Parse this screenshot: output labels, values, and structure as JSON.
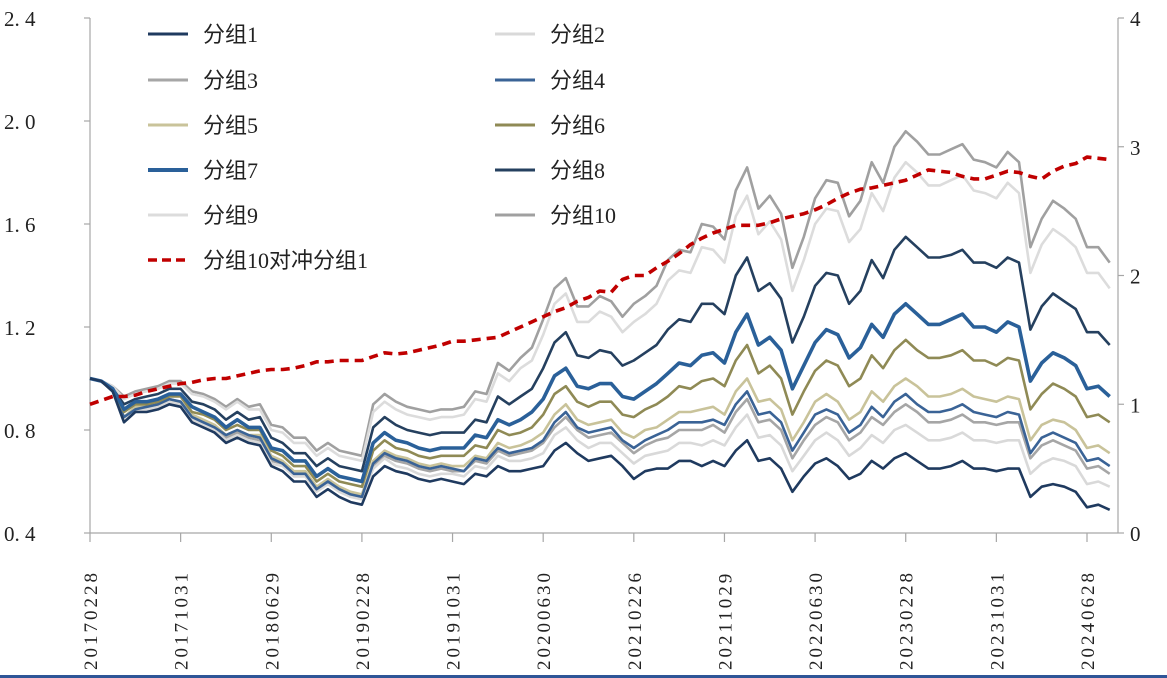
{
  "chart_data": {
    "type": "line",
    "title": "",
    "xlabel": "",
    "ylabel": "",
    "y2label": "",
    "ylim": [
      0.4,
      2.4
    ],
    "y2lim": [
      0,
      4
    ],
    "yticks": [
      "0. 4",
      "0. 8",
      "1. 2",
      "1. 6",
      "2. 0",
      "2. 4"
    ],
    "ytick_values": [
      0.4,
      0.8,
      1.2,
      1.6,
      2.0,
      2.4
    ],
    "y2ticks": [
      "0",
      "1",
      "2",
      "3",
      "4"
    ],
    "y2tick_values": [
      0,
      1,
      2,
      3,
      4
    ],
    "x_frequency": "monthly",
    "xticks": [
      {
        "label": "20170228",
        "index": 0
      },
      {
        "label": "20171031",
        "index": 8
      },
      {
        "label": "20180629",
        "index": 16
      },
      {
        "label": "20190228",
        "index": 24
      },
      {
        "label": "20191031",
        "index": 32
      },
      {
        "label": "20200630",
        "index": 40
      },
      {
        "label": "20210226",
        "index": 48
      },
      {
        "label": "20211029",
        "index": 56
      },
      {
        "label": "20220630",
        "index": 64
      },
      {
        "label": "20230228",
        "index": 72
      },
      {
        "label": "20231031",
        "index": 80
      },
      {
        "label": "20240628",
        "index": 88
      }
    ],
    "grid": false,
    "legend_position": "top-left",
    "series": [
      {
        "name": "分组1",
        "axis": "left",
        "color": "#1f3a5f",
        "values": [
          1.0,
          0.99,
          0.95,
          0.83,
          0.87,
          0.87,
          0.88,
          0.9,
          0.89,
          0.83,
          0.81,
          0.79,
          0.75,
          0.77,
          0.75,
          0.74,
          0.66,
          0.64,
          0.6,
          0.6,
          0.54,
          0.57,
          0.54,
          0.52,
          0.51,
          0.62,
          0.66,
          0.64,
          0.63,
          0.61,
          0.6,
          0.61,
          0.6,
          0.59,
          0.63,
          0.62,
          0.66,
          0.64,
          0.64,
          0.65,
          0.66,
          0.72,
          0.75,
          0.71,
          0.68,
          0.69,
          0.7,
          0.66,
          0.61,
          0.64,
          0.65,
          0.65,
          0.68,
          0.68,
          0.66,
          0.68,
          0.66,
          0.72,
          0.76,
          0.68,
          0.69,
          0.65,
          0.56,
          0.62,
          0.67,
          0.69,
          0.66,
          0.61,
          0.63,
          0.68,
          0.65,
          0.69,
          0.71,
          0.68,
          0.65,
          0.65,
          0.66,
          0.68,
          0.65,
          0.65,
          0.64,
          0.65,
          0.65,
          0.54,
          0.58,
          0.59,
          0.58,
          0.56,
          0.5,
          0.51,
          0.49
        ]
      },
      {
        "name": "分组2",
        "axis": "left",
        "color": "#d9d9d9",
        "values": [
          1.0,
          0.99,
          0.95,
          0.84,
          0.88,
          0.88,
          0.89,
          0.91,
          0.9,
          0.84,
          0.82,
          0.8,
          0.76,
          0.78,
          0.76,
          0.75,
          0.67,
          0.66,
          0.62,
          0.62,
          0.56,
          0.59,
          0.56,
          0.54,
          0.53,
          0.65,
          0.69,
          0.66,
          0.65,
          0.63,
          0.62,
          0.63,
          0.63,
          0.62,
          0.66,
          0.65,
          0.7,
          0.68,
          0.68,
          0.69,
          0.71,
          0.78,
          0.81,
          0.76,
          0.73,
          0.75,
          0.75,
          0.71,
          0.67,
          0.7,
          0.71,
          0.72,
          0.75,
          0.75,
          0.74,
          0.76,
          0.74,
          0.81,
          0.86,
          0.77,
          0.78,
          0.74,
          0.64,
          0.7,
          0.76,
          0.79,
          0.76,
          0.7,
          0.73,
          0.78,
          0.75,
          0.8,
          0.82,
          0.79,
          0.76,
          0.76,
          0.77,
          0.79,
          0.76,
          0.76,
          0.75,
          0.76,
          0.76,
          0.63,
          0.67,
          0.69,
          0.68,
          0.66,
          0.59,
          0.6,
          0.58
        ]
      },
      {
        "name": "分组3",
        "axis": "left",
        "color": "#a6a6a6",
        "values": [
          1.0,
          0.99,
          0.95,
          0.85,
          0.88,
          0.88,
          0.89,
          0.91,
          0.91,
          0.85,
          0.83,
          0.81,
          0.77,
          0.79,
          0.77,
          0.76,
          0.68,
          0.67,
          0.63,
          0.63,
          0.57,
          0.6,
          0.57,
          0.55,
          0.54,
          0.66,
          0.7,
          0.68,
          0.67,
          0.65,
          0.64,
          0.65,
          0.64,
          0.64,
          0.68,
          0.67,
          0.72,
          0.7,
          0.71,
          0.72,
          0.75,
          0.81,
          0.85,
          0.8,
          0.77,
          0.78,
          0.79,
          0.75,
          0.71,
          0.74,
          0.76,
          0.77,
          0.8,
          0.8,
          0.8,
          0.82,
          0.79,
          0.87,
          0.92,
          0.83,
          0.84,
          0.8,
          0.69,
          0.76,
          0.82,
          0.85,
          0.83,
          0.76,
          0.79,
          0.85,
          0.82,
          0.87,
          0.9,
          0.87,
          0.83,
          0.83,
          0.84,
          0.86,
          0.83,
          0.83,
          0.82,
          0.83,
          0.83,
          0.69,
          0.74,
          0.76,
          0.74,
          0.72,
          0.65,
          0.66,
          0.63
        ]
      },
      {
        "name": "分组4",
        "axis": "left",
        "color": "#3a6396",
        "values": [
          1.0,
          0.99,
          0.95,
          0.85,
          0.88,
          0.89,
          0.9,
          0.92,
          0.91,
          0.85,
          0.83,
          0.81,
          0.78,
          0.8,
          0.78,
          0.77,
          0.69,
          0.67,
          0.63,
          0.63,
          0.57,
          0.6,
          0.57,
          0.55,
          0.54,
          0.67,
          0.71,
          0.69,
          0.68,
          0.66,
          0.65,
          0.66,
          0.65,
          0.64,
          0.69,
          0.68,
          0.73,
          0.71,
          0.72,
          0.73,
          0.76,
          0.83,
          0.87,
          0.81,
          0.79,
          0.8,
          0.81,
          0.76,
          0.73,
          0.76,
          0.78,
          0.8,
          0.83,
          0.83,
          0.83,
          0.84,
          0.82,
          0.9,
          0.95,
          0.86,
          0.87,
          0.83,
          0.72,
          0.79,
          0.86,
          0.88,
          0.86,
          0.79,
          0.82,
          0.89,
          0.85,
          0.91,
          0.94,
          0.9,
          0.87,
          0.87,
          0.88,
          0.9,
          0.87,
          0.86,
          0.85,
          0.87,
          0.86,
          0.71,
          0.77,
          0.79,
          0.77,
          0.75,
          0.68,
          0.69,
          0.66
        ]
      },
      {
        "name": "分组5",
        "axis": "left",
        "color": "#c9c39a",
        "values": [
          1.0,
          0.99,
          0.95,
          0.85,
          0.89,
          0.89,
          0.9,
          0.92,
          0.91,
          0.86,
          0.84,
          0.82,
          0.78,
          0.8,
          0.78,
          0.78,
          0.7,
          0.68,
          0.64,
          0.64,
          0.58,
          0.61,
          0.58,
          0.56,
          0.55,
          0.68,
          0.72,
          0.7,
          0.69,
          0.67,
          0.66,
          0.67,
          0.66,
          0.66,
          0.7,
          0.69,
          0.75,
          0.73,
          0.74,
          0.76,
          0.79,
          0.86,
          0.9,
          0.84,
          0.82,
          0.83,
          0.84,
          0.79,
          0.77,
          0.8,
          0.81,
          0.84,
          0.87,
          0.87,
          0.88,
          0.89,
          0.86,
          0.95,
          1.0,
          0.91,
          0.92,
          0.88,
          0.76,
          0.83,
          0.91,
          0.94,
          0.91,
          0.84,
          0.87,
          0.95,
          0.91,
          0.97,
          1.0,
          0.97,
          0.93,
          0.93,
          0.94,
          0.96,
          0.93,
          0.92,
          0.91,
          0.93,
          0.92,
          0.76,
          0.82,
          0.84,
          0.83,
          0.8,
          0.73,
          0.74,
          0.71
        ]
      },
      {
        "name": "分组6",
        "axis": "left",
        "color": "#8f8a55",
        "values": [
          1.0,
          0.99,
          0.96,
          0.87,
          0.9,
          0.9,
          0.91,
          0.93,
          0.93,
          0.87,
          0.86,
          0.84,
          0.8,
          0.82,
          0.8,
          0.8,
          0.72,
          0.7,
          0.66,
          0.66,
          0.6,
          0.63,
          0.6,
          0.59,
          0.58,
          0.72,
          0.76,
          0.73,
          0.72,
          0.7,
          0.69,
          0.7,
          0.7,
          0.7,
          0.74,
          0.73,
          0.8,
          0.78,
          0.79,
          0.81,
          0.86,
          0.94,
          0.97,
          0.91,
          0.89,
          0.91,
          0.91,
          0.86,
          0.85,
          0.88,
          0.9,
          0.93,
          0.97,
          0.96,
          0.99,
          1.0,
          0.97,
          1.07,
          1.13,
          1.02,
          1.05,
          1.0,
          0.86,
          0.95,
          1.03,
          1.07,
          1.05,
          0.97,
          1.0,
          1.09,
          1.04,
          1.11,
          1.15,
          1.11,
          1.08,
          1.08,
          1.09,
          1.11,
          1.07,
          1.07,
          1.05,
          1.08,
          1.07,
          0.88,
          0.94,
          0.98,
          0.96,
          0.93,
          0.85,
          0.86,
          0.83
        ]
      },
      {
        "name": "分组7",
        "axis": "left",
        "color": "#2a6099",
        "values": [
          1.0,
          0.99,
          0.96,
          0.88,
          0.91,
          0.91,
          0.92,
          0.94,
          0.94,
          0.89,
          0.87,
          0.85,
          0.81,
          0.84,
          0.81,
          0.81,
          0.73,
          0.72,
          0.68,
          0.68,
          0.62,
          0.65,
          0.62,
          0.61,
          0.6,
          0.75,
          0.79,
          0.76,
          0.75,
          0.73,
          0.72,
          0.73,
          0.73,
          0.73,
          0.78,
          0.77,
          0.84,
          0.82,
          0.84,
          0.87,
          0.92,
          1.01,
          1.04,
          0.97,
          0.96,
          0.98,
          0.98,
          0.93,
          0.92,
          0.95,
          0.98,
          1.02,
          1.06,
          1.05,
          1.09,
          1.1,
          1.06,
          1.18,
          1.25,
          1.13,
          1.16,
          1.11,
          0.96,
          1.05,
          1.14,
          1.19,
          1.17,
          1.08,
          1.12,
          1.21,
          1.16,
          1.25,
          1.29,
          1.25,
          1.21,
          1.21,
          1.23,
          1.25,
          1.2,
          1.2,
          1.18,
          1.22,
          1.2,
          0.99,
          1.06,
          1.1,
          1.08,
          1.05,
          0.96,
          0.97,
          0.93
        ]
      },
      {
        "name": "分组8",
        "axis": "left",
        "color": "#25405f",
        "values": [
          1.0,
          0.99,
          0.96,
          0.9,
          0.92,
          0.93,
          0.94,
          0.96,
          0.96,
          0.91,
          0.9,
          0.88,
          0.84,
          0.87,
          0.84,
          0.85,
          0.77,
          0.75,
          0.71,
          0.71,
          0.66,
          0.69,
          0.66,
          0.65,
          0.64,
          0.81,
          0.85,
          0.82,
          0.8,
          0.79,
          0.78,
          0.79,
          0.79,
          0.79,
          0.84,
          0.83,
          0.93,
          0.9,
          0.93,
          0.96,
          1.04,
          1.14,
          1.18,
          1.09,
          1.08,
          1.11,
          1.1,
          1.05,
          1.07,
          1.1,
          1.13,
          1.19,
          1.23,
          1.22,
          1.29,
          1.29,
          1.25,
          1.4,
          1.47,
          1.34,
          1.37,
          1.31,
          1.14,
          1.24,
          1.36,
          1.41,
          1.4,
          1.29,
          1.34,
          1.46,
          1.39,
          1.5,
          1.55,
          1.51,
          1.47,
          1.47,
          1.48,
          1.5,
          1.45,
          1.45,
          1.43,
          1.47,
          1.45,
          1.19,
          1.28,
          1.33,
          1.3,
          1.27,
          1.18,
          1.18,
          1.13
        ]
      },
      {
        "name": "分组9",
        "axis": "left",
        "color": "#dcdcdc",
        "values": [
          1.0,
          0.99,
          0.97,
          0.92,
          0.94,
          0.95,
          0.96,
          0.98,
          0.98,
          0.94,
          0.93,
          0.91,
          0.88,
          0.91,
          0.88,
          0.88,
          0.8,
          0.79,
          0.75,
          0.75,
          0.7,
          0.73,
          0.7,
          0.69,
          0.68,
          0.87,
          0.91,
          0.88,
          0.86,
          0.85,
          0.84,
          0.85,
          0.85,
          0.86,
          0.92,
          0.91,
          1.02,
          0.99,
          1.04,
          1.07,
          1.17,
          1.29,
          1.33,
          1.22,
          1.22,
          1.26,
          1.24,
          1.18,
          1.22,
          1.25,
          1.29,
          1.38,
          1.42,
          1.41,
          1.51,
          1.5,
          1.45,
          1.63,
          1.71,
          1.56,
          1.61,
          1.54,
          1.34,
          1.46,
          1.6,
          1.66,
          1.65,
          1.53,
          1.58,
          1.72,
          1.65,
          1.78,
          1.84,
          1.8,
          1.75,
          1.75,
          1.77,
          1.79,
          1.73,
          1.72,
          1.7,
          1.76,
          1.72,
          1.41,
          1.52,
          1.58,
          1.55,
          1.51,
          1.41,
          1.41,
          1.35
        ]
      },
      {
        "name": "分组10",
        "axis": "left",
        "color": "#a0a0a0",
        "values": [
          1.0,
          0.99,
          0.97,
          0.93,
          0.95,
          0.96,
          0.97,
          0.99,
          0.99,
          0.95,
          0.94,
          0.92,
          0.89,
          0.92,
          0.89,
          0.9,
          0.82,
          0.81,
          0.77,
          0.77,
          0.72,
          0.75,
          0.72,
          0.71,
          0.7,
          0.9,
          0.94,
          0.91,
          0.89,
          0.88,
          0.87,
          0.88,
          0.88,
          0.89,
          0.95,
          0.94,
          1.06,
          1.03,
          1.08,
          1.12,
          1.23,
          1.35,
          1.39,
          1.28,
          1.28,
          1.32,
          1.3,
          1.24,
          1.29,
          1.32,
          1.36,
          1.46,
          1.5,
          1.49,
          1.6,
          1.59,
          1.54,
          1.73,
          1.82,
          1.66,
          1.71,
          1.64,
          1.43,
          1.55,
          1.7,
          1.77,
          1.76,
          1.63,
          1.69,
          1.84,
          1.76,
          1.9,
          1.96,
          1.92,
          1.87,
          1.87,
          1.89,
          1.91,
          1.85,
          1.84,
          1.82,
          1.88,
          1.84,
          1.51,
          1.62,
          1.69,
          1.66,
          1.62,
          1.51,
          1.51,
          1.45
        ]
      },
      {
        "name": "分组10对冲分组1",
        "axis": "right",
        "color": "#c00000",
        "dashed": true,
        "values": [
          1.0,
          1.03,
          1.06,
          1.06,
          1.07,
          1.1,
          1.12,
          1.14,
          1.16,
          1.17,
          1.19,
          1.2,
          1.2,
          1.22,
          1.24,
          1.26,
          1.27,
          1.27,
          1.28,
          1.3,
          1.33,
          1.33,
          1.34,
          1.34,
          1.34,
          1.37,
          1.4,
          1.39,
          1.4,
          1.42,
          1.44,
          1.46,
          1.49,
          1.49,
          1.5,
          1.51,
          1.52,
          1.56,
          1.6,
          1.64,
          1.68,
          1.72,
          1.75,
          1.8,
          1.83,
          1.88,
          1.87,
          1.97,
          2.0,
          2.0,
          2.06,
          2.11,
          2.17,
          2.24,
          2.29,
          2.33,
          2.36,
          2.39,
          2.39,
          2.39,
          2.41,
          2.44,
          2.46,
          2.48,
          2.51,
          2.55,
          2.6,
          2.64,
          2.67,
          2.68,
          2.7,
          2.72,
          2.74,
          2.78,
          2.82,
          2.81,
          2.8,
          2.77,
          2.75,
          2.75,
          2.78,
          2.81,
          2.8,
          2.77,
          2.75,
          2.81,
          2.85,
          2.87,
          2.92,
          2.91,
          2.9
        ]
      }
    ]
  }
}
